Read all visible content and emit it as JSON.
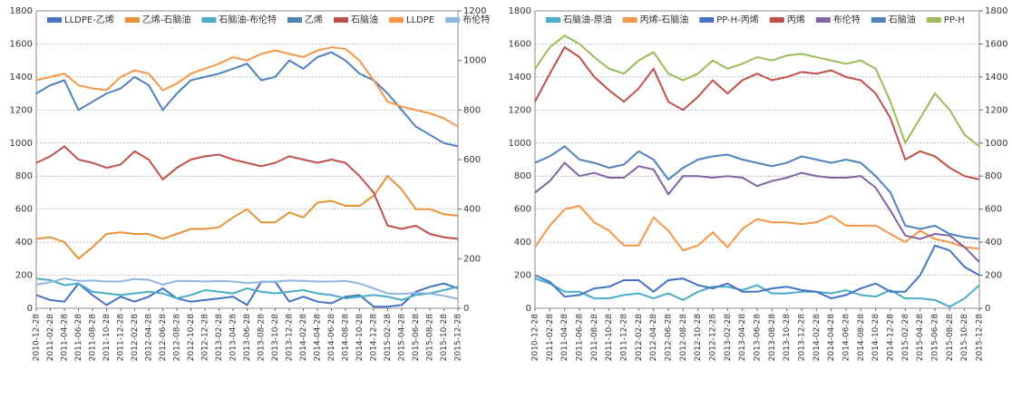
{
  "chart_data": [
    {
      "type": "line",
      "categories": [
        "2010-12-28",
        "2011-02-28",
        "2011-04-28",
        "2011-06-28",
        "2011-08-28",
        "2011-10-28",
        "2011-12-28",
        "2012-02-28",
        "2012-04-28",
        "2012-06-28",
        "2012-08-28",
        "2012-10-28",
        "2012-12-28",
        "2013-02-28",
        "2013-04-28",
        "2013-06-28",
        "2013-08-28",
        "2013-10-28",
        "2013-12-28",
        "2014-02-28",
        "2014-04-28",
        "2014-06-28",
        "2014-08-28",
        "2014-10-28",
        "2014-12-28",
        "2015-02-28",
        "2015-04-28",
        "2015-06-28",
        "2015-08-28",
        "2015-10-28",
        "2015-12-28"
      ],
      "ylim": [
        0,
        1800
      ],
      "yticks": [
        0,
        200,
        400,
        600,
        800,
        1000,
        1200,
        1400,
        1600,
        1800
      ],
      "y2lim": [
        0,
        1200
      ],
      "y2ticks": [
        0,
        200,
        400,
        600,
        800,
        1000,
        1200
      ],
      "grid": true,
      "legend": "top",
      "series": [
        {
          "name": "LLDPE-乙烯",
          "color": "#4472c4",
          "values": [
            80,
            50,
            40,
            150,
            80,
            20,
            70,
            40,
            70,
            120,
            60,
            40,
            50,
            60,
            70,
            20,
            160,
            160,
            40,
            70,
            40,
            30,
            70,
            80,
            10,
            10,
            20,
            100,
            130,
            150,
            120
          ]
        },
        {
          "name": "乙烯-石脑油",
          "color": "#e8923a",
          "values": [
            420,
            430,
            400,
            300,
            370,
            450,
            460,
            450,
            450,
            420,
            450,
            480,
            480,
            490,
            550,
            600,
            520,
            520,
            580,
            550,
            640,
            650,
            620,
            620,
            680,
            800,
            720,
            600,
            600,
            570,
            560
          ]
        },
        {
          "name": "石脑油-布伦特",
          "color": "#4bacc6",
          "values": [
            180,
            170,
            140,
            150,
            100,
            90,
            80,
            90,
            100,
            90,
            60,
            80,
            110,
            100,
            90,
            120,
            100,
            90,
            100,
            110,
            90,
            80,
            60,
            70,
            80,
            70,
            50,
            80,
            90,
            110,
            130
          ]
        },
        {
          "name": "乙烯",
          "color": "#4f81bd",
          "values": [
            1300,
            1350,
            1380,
            1200,
            1250,
            1300,
            1330,
            1400,
            1350,
            1200,
            1300,
            1380,
            1400,
            1420,
            1450,
            1480,
            1380,
            1400,
            1500,
            1450,
            1520,
            1550,
            1500,
            1420,
            1380,
            1300,
            1200,
            1100,
            1050,
            1000,
            980
          ]
        },
        {
          "name": "石脑油",
          "color": "#c0504d",
          "values": [
            880,
            920,
            980,
            900,
            880,
            850,
            870,
            950,
            900,
            780,
            850,
            900,
            920,
            930,
            900,
            880,
            860,
            880,
            920,
            900,
            880,
            900,
            880,
            800,
            700,
            500,
            480,
            500,
            450,
            430,
            420
          ]
        },
        {
          "name": "LLDPE",
          "color": "#f79646",
          "values": [
            1380,
            1400,
            1420,
            1350,
            1330,
            1320,
            1400,
            1440,
            1420,
            1320,
            1360,
            1420,
            1450,
            1480,
            1520,
            1500,
            1540,
            1560,
            1540,
            1520,
            1560,
            1580,
            1570,
            1500,
            1380,
            1250,
            1220,
            1200,
            1180,
            1150,
            1100
          ]
        },
        {
          "name": "布伦特",
          "color": "#8eb4e3",
          "axis": "y2",
          "values": [
            95,
            105,
            120,
            110,
            112,
            108,
            108,
            118,
            115,
            95,
            110,
            110,
            108,
            110,
            108,
            102,
            105,
            108,
            112,
            110,
            108,
            108,
            110,
            100,
            80,
            60,
            58,
            62,
            60,
            50,
            38
          ]
        }
      ]
    },
    {
      "type": "line",
      "categories": [
        "2010-12-28",
        "2011-02-28",
        "2011-04-28",
        "2011-06-28",
        "2011-08-28",
        "2011-10-28",
        "2011-12-28",
        "2012-02-28",
        "2012-04-28",
        "2012-06-28",
        "2012-08-28",
        "2012-10-28",
        "2012-12-28",
        "2013-02-28",
        "2013-04-28",
        "2013-06-28",
        "2013-08-28",
        "2013-10-28",
        "2013-12-28",
        "2014-02-28",
        "2014-04-28",
        "2014-06-28",
        "2014-08-28",
        "2014-10-28",
        "2014-12-28",
        "2015-02-28",
        "2015-04-28",
        "2015-06-28",
        "2015-08-28",
        "2015-10-28",
        "2015-12-28"
      ],
      "ylim": [
        0,
        1800
      ],
      "yticks": [
        0,
        200,
        400,
        600,
        800,
        1000,
        1200,
        1400,
        1600,
        1800
      ],
      "y2lim": [
        0,
        1800
      ],
      "y2ticks": [
        0,
        200,
        400,
        600,
        800,
        1000,
        1200,
        1400,
        1600,
        1800
      ],
      "grid": true,
      "legend": "top",
      "series": [
        {
          "name": "石脑油-原油",
          "color": "#4bacc6",
          "values": [
            180,
            150,
            100,
            100,
            60,
            60,
            80,
            90,
            60,
            90,
            50,
            100,
            130,
            130,
            110,
            140,
            90,
            90,
            100,
            100,
            90,
            110,
            80,
            70,
            110,
            60,
            60,
            50,
            10,
            60,
            140
          ]
        },
        {
          "name": "丙烯-石脑油",
          "color": "#f79646",
          "values": [
            370,
            500,
            600,
            620,
            520,
            470,
            380,
            380,
            550,
            470,
            350,
            380,
            460,
            370,
            480,
            540,
            520,
            520,
            510,
            520,
            560,
            500,
            500,
            500,
            450,
            400,
            470,
            420,
            400,
            370,
            360
          ]
        },
        {
          "name": "PP-H-丙烯",
          "color": "#4472c4",
          "values": [
            200,
            160,
            70,
            80,
            120,
            130,
            170,
            170,
            100,
            170,
            180,
            140,
            120,
            150,
            100,
            100,
            120,
            130,
            110,
            100,
            60,
            80,
            120,
            150,
            100,
            100,
            200,
            380,
            350,
            250,
            200
          ]
        },
        {
          "name": "丙烯",
          "color": "#c0504d",
          "values": [
            1250,
            1420,
            1580,
            1520,
            1400,
            1320,
            1250,
            1330,
            1450,
            1250,
            1200,
            1280,
            1380,
            1300,
            1380,
            1420,
            1380,
            1400,
            1430,
            1420,
            1440,
            1400,
            1380,
            1300,
            1150,
            900,
            950,
            920,
            850,
            800,
            780
          ]
        },
        {
          "name": "布伦特",
          "color": "#8064a2",
          "values": [
            700,
            770,
            880,
            800,
            820,
            790,
            790,
            860,
            840,
            690,
            800,
            800,
            790,
            800,
            790,
            740,
            770,
            790,
            820,
            800,
            790,
            790,
            800,
            730,
            590,
            440,
            420,
            450,
            440,
            370,
            280
          ]
        },
        {
          "name": "石脑油",
          "color": "#4f81bd",
          "values": [
            880,
            920,
            980,
            900,
            880,
            850,
            870,
            950,
            900,
            780,
            850,
            900,
            920,
            930,
            900,
            880,
            860,
            880,
            920,
            900,
            880,
            900,
            880,
            800,
            700,
            500,
            480,
            500,
            450,
            430,
            420
          ]
        },
        {
          "name": "PP-H",
          "color": "#9bbb59",
          "values": [
            1450,
            1580,
            1650,
            1600,
            1520,
            1450,
            1420,
            1500,
            1550,
            1420,
            1380,
            1420,
            1500,
            1450,
            1480,
            1520,
            1500,
            1530,
            1540,
            1520,
            1500,
            1480,
            1500,
            1450,
            1250,
            1000,
            1150,
            1300,
            1200,
            1050,
            980
          ]
        }
      ]
    }
  ]
}
